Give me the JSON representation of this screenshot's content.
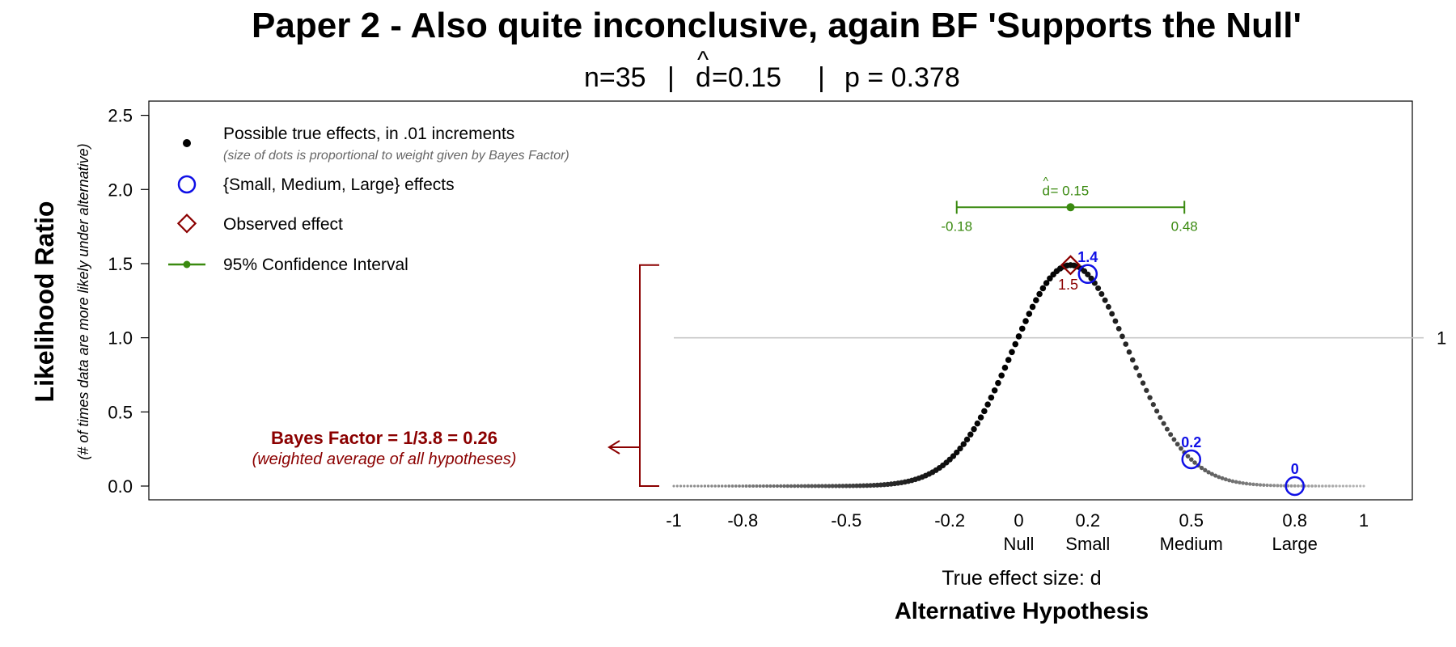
{
  "chart_data": {
    "type": "scatter",
    "title": "Paper 2 - Also quite inconclusive, again BF 'Supports the Null'",
    "subtitle": {
      "n": "n=35",
      "sep": "|",
      "dhat_letter": "d",
      "dhat_hat": "^",
      "dhat_value": "=0.15",
      "p": "p = 0.378"
    },
    "ylabel": "Likelihood Ratio",
    "ylabel_sub": "(# of times data are more likely under alternative)",
    "xlabel": "True effect size: d",
    "xlabel_bold": "Alternative Hypothesis",
    "ylim": [
      0,
      2.5
    ],
    "yticks": [
      "0.0",
      "0.5",
      "1.0",
      "1.5",
      "2.0",
      "2.5"
    ],
    "xticks": [
      {
        "value": -1,
        "label": "-1"
      },
      {
        "value": -0.8,
        "label": "-0.8"
      },
      {
        "value": -0.5,
        "label": "-0.5"
      },
      {
        "value": -0.2,
        "label": "-0.2"
      },
      {
        "value": 0,
        "label": "0"
      },
      {
        "value": 0.2,
        "label": "0.2"
      },
      {
        "value": 0.5,
        "label": "0.5"
      },
      {
        "value": 0.8,
        "label": "0.8"
      },
      {
        "value": 1,
        "label": "1"
      }
    ],
    "xnames": [
      {
        "value": 0,
        "label": "Null"
      },
      {
        "value": 0.2,
        "label": "Small"
      },
      {
        "value": 0.5,
        "label": "Medium"
      },
      {
        "value": 0.8,
        "label": "Large"
      }
    ],
    "curve": {
      "x_from": -1,
      "x_to": 1,
      "x_step": 0.01,
      "peak_x": 0.15,
      "peak_lr": 1.49,
      "sd": 0.17
    },
    "reference_line": {
      "y": 1,
      "label": "1"
    },
    "effects": [
      {
        "x": 0.2,
        "y": 1.43,
        "label": "1.4"
      },
      {
        "x": 0.5,
        "y": 0.18,
        "label": "0.2"
      },
      {
        "x": 0.8,
        "y": 0.0,
        "label": "0"
      }
    ],
    "observed": {
      "x": 0.15,
      "y": 1.49,
      "label": "1.5"
    },
    "ci": {
      "lower": -0.18,
      "upper": 0.48,
      "center": 0.15,
      "y": 1.88,
      "label_lower": "-0.18",
      "label_upper": "0.48",
      "center_letter": "d",
      "center_hat": "^",
      "center_value": " = 0.15"
    },
    "bayes_factor": {
      "line1": "Bayes Factor = 1/3.8 = 0.26",
      "line2": "(weighted average of all hypotheses)"
    },
    "legend": {
      "position": "top-left",
      "entries": [
        {
          "label": "Possible true effects, in .01 increments",
          "sub": "(size of dots is proportional to weight given by Bayes Factor)"
        },
        {
          "label": "{Small, Medium, Large} effects"
        },
        {
          "label": "Observed effect"
        },
        {
          "label": "95% Confidence Interval"
        }
      ]
    },
    "colors": {
      "dots": "#000000",
      "effects": "#1010e6",
      "observed": "#8b0000",
      "ci": "#3a8a10",
      "bayes": "#8b0000",
      "refline": "#c8c8c8"
    },
    "grid": false
  }
}
